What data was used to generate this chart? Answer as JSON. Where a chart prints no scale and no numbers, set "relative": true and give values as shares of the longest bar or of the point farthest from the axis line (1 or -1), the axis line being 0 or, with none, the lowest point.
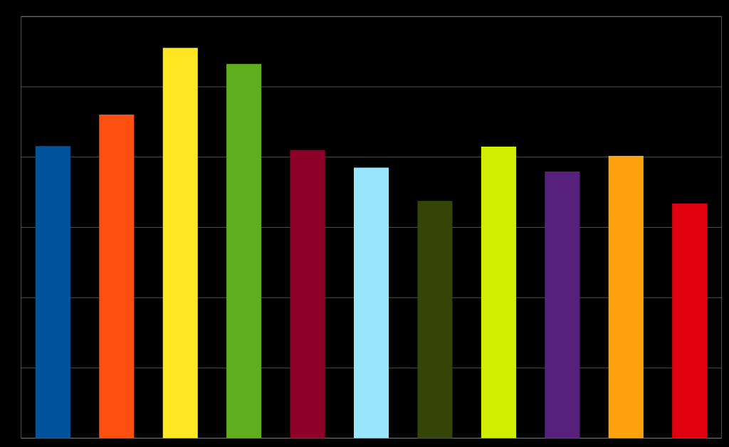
{
  "chart_data": {
    "type": "bar",
    "relative": true,
    "grid": "y",
    "categories": [
      null,
      null,
      null,
      null,
      null,
      null,
      null,
      null,
      null,
      null,
      null
    ],
    "values": [
      0.748,
      0.829,
      1,
      0.959,
      0.738,
      0.693,
      0.608,
      0.747,
      0.683,
      0.723,
      0.601
    ],
    "colors": [
      "#00539b",
      "#ff4f10",
      "#ffe623",
      "#5fae1e",
      "#8c0029",
      "#99e6ff",
      "#364407",
      "#cfee00",
      "#57207a",
      "#ffa210",
      "#e0000e"
    ]
  }
}
